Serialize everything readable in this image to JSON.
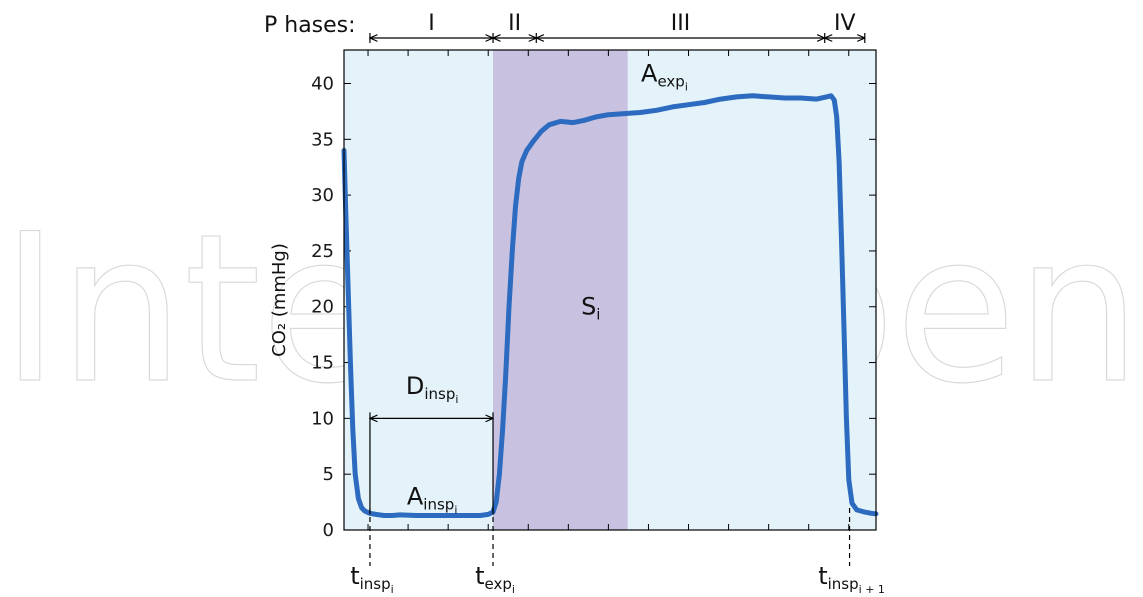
{
  "watermark": "IntechOpen",
  "colors": {
    "background": "#e3f3f9",
    "curve": "#2c6bbf",
    "shade": "#c8c2e0",
    "axis": "#000000"
  },
  "phases": {
    "label": "P hases:",
    "items": [
      {
        "name": "I",
        "start": 0.12,
        "end": 7.8
      },
      {
        "name": "II",
        "start": 7.8,
        "end": 10.5
      },
      {
        "name": "III",
        "start": 10.5,
        "end": 28.5
      },
      {
        "name": "IV",
        "start": 28.5,
        "end": 31.0
      }
    ]
  },
  "annotations": {
    "a_exp": {
      "main": "A",
      "sub": "exp",
      "subsub": "i",
      "x": 18.5,
      "y": 40.2
    },
    "s": {
      "main": "S",
      "sub": "i",
      "x": 13.9,
      "y": 19.3
    },
    "d_insp": {
      "main": "D",
      "sub": "insp",
      "subsub": "i",
      "x": 4.0,
      "y": 12.2
    },
    "a_insp": {
      "main": "A",
      "sub": "insp",
      "subsub": "i",
      "x": 4.0,
      "y": 2.3
    },
    "bracket": {
      "x1": 0.12,
      "x2": 7.8,
      "y": 10.0
    }
  },
  "time_markers": [
    {
      "main": "t",
      "sub": "insp",
      "subsub": "i",
      "x": 0.12
    },
    {
      "main": "t",
      "sub": "exp",
      "subsub": "i",
      "x": 7.8
    },
    {
      "main": "t",
      "sub": "insp",
      "subsub": "i + 1",
      "x": 30.05
    }
  ],
  "chart_data": {
    "type": "line",
    "title": "",
    "xlabel": "",
    "ylabel": "CO₂ (mmHg)",
    "xlim": [
      -1.5,
      31.7
    ],
    "ylim": [
      0,
      43
    ],
    "x_ticks_labeled": false,
    "yticks": [
      0,
      5,
      10,
      15,
      20,
      25,
      30,
      35,
      40
    ],
    "grid": false,
    "shaded_region": {
      "name": "S_i",
      "x_start": 7.8,
      "x_end": 16.2
    },
    "series": [
      {
        "points": [
          [
            -1.5,
            34
          ],
          [
            -1.4,
            29
          ],
          [
            -1.25,
            22
          ],
          [
            -1.1,
            15
          ],
          [
            -0.95,
            9
          ],
          [
            -0.8,
            5
          ],
          [
            -0.6,
            2.8
          ],
          [
            -0.4,
            2.0
          ],
          [
            -0.2,
            1.7
          ],
          [
            0.1,
            1.5
          ],
          [
            0.5,
            1.4
          ],
          [
            1.0,
            1.3
          ],
          [
            1.5,
            1.3
          ],
          [
            2.0,
            1.35
          ],
          [
            3.0,
            1.3
          ],
          [
            4.0,
            1.3
          ],
          [
            5.0,
            1.3
          ],
          [
            6.0,
            1.3
          ],
          [
            7.0,
            1.3
          ],
          [
            7.5,
            1.4
          ],
          [
            7.8,
            1.6
          ],
          [
            8.0,
            2.5
          ],
          [
            8.2,
            5
          ],
          [
            8.4,
            9
          ],
          [
            8.6,
            14
          ],
          [
            8.8,
            20
          ],
          [
            9.0,
            25
          ],
          [
            9.2,
            29
          ],
          [
            9.4,
            31.5
          ],
          [
            9.6,
            33
          ],
          [
            9.9,
            34
          ],
          [
            10.3,
            34.8
          ],
          [
            10.8,
            35.7
          ],
          [
            11.3,
            36.3
          ],
          [
            12.0,
            36.6
          ],
          [
            12.8,
            36.5
          ],
          [
            13.5,
            36.7
          ],
          [
            14.2,
            37.0
          ],
          [
            15.0,
            37.2
          ],
          [
            16.0,
            37.3
          ],
          [
            17.0,
            37.4
          ],
          [
            18.0,
            37.6
          ],
          [
            19.0,
            37.9
          ],
          [
            20.0,
            38.1
          ],
          [
            21.0,
            38.3
          ],
          [
            22.0,
            38.6
          ],
          [
            23.0,
            38.8
          ],
          [
            24.0,
            38.9
          ],
          [
            25.0,
            38.8
          ],
          [
            26.0,
            38.7
          ],
          [
            27.0,
            38.7
          ],
          [
            28.0,
            38.6
          ],
          [
            28.6,
            38.8
          ],
          [
            28.9,
            38.9
          ],
          [
            29.1,
            38.5
          ],
          [
            29.25,
            37
          ],
          [
            29.4,
            33
          ],
          [
            29.55,
            26
          ],
          [
            29.7,
            18
          ],
          [
            29.85,
            10
          ],
          [
            30.0,
            4.5
          ],
          [
            30.2,
            2.4
          ],
          [
            30.5,
            1.8
          ],
          [
            31.0,
            1.6
          ],
          [
            31.4,
            1.5
          ],
          [
            31.7,
            1.45
          ]
        ]
      }
    ]
  }
}
